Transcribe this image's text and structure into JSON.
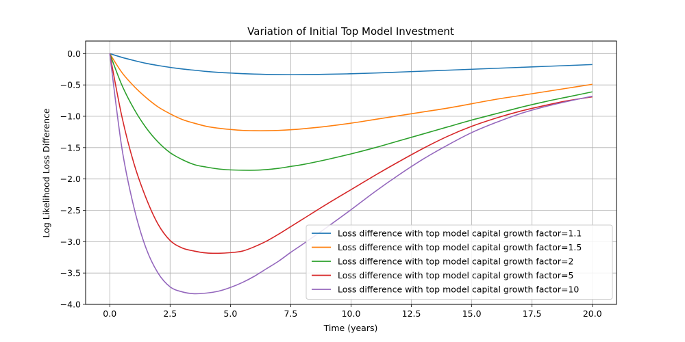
{
  "chart_data": {
    "type": "line",
    "title": "Variation of Initial Top Model Investment",
    "xlabel": "Time (years)",
    "ylabel": "Log Likelihood Loss Difference",
    "xlim": [
      -1.0,
      21.0
    ],
    "ylim": [
      -4.0,
      0.2
    ],
    "xticks": [
      0.0,
      2.5,
      5.0,
      7.5,
      10.0,
      12.5,
      15.0,
      17.5,
      20.0
    ],
    "xtick_labels": [
      "0.0",
      "2.5",
      "5.0",
      "7.5",
      "10.0",
      "12.5",
      "15.0",
      "17.5",
      "20.0"
    ],
    "yticks": [
      0.0,
      -0.5,
      -1.0,
      -1.5,
      -2.0,
      -2.5,
      -3.0,
      -3.5,
      -4.0
    ],
    "ytick_labels": [
      "0.0",
      "−0.5",
      "−1.0",
      "−1.5",
      "−2.0",
      "−2.5",
      "−3.0",
      "−3.5",
      "−4.0"
    ],
    "grid": true,
    "legend_position": "lower-right",
    "x": [
      0,
      0.5,
      1,
      1.5,
      2,
      2.5,
      3,
      3.5,
      4,
      4.5,
      5,
      5.5,
      6,
      6.5,
      7,
      7.5,
      8,
      9,
      10,
      11,
      12,
      13,
      14,
      15,
      16,
      17,
      18,
      19,
      20
    ],
    "series": [
      {
        "name": "Loss difference with top model capital growth factor=1.1",
        "color": "#1f77b4",
        "values": [
          0.0,
          -0.06,
          -0.11,
          -0.155,
          -0.19,
          -0.22,
          -0.245,
          -0.265,
          -0.285,
          -0.3,
          -0.31,
          -0.32,
          -0.327,
          -0.332,
          -0.335,
          -0.336,
          -0.335,
          -0.33,
          -0.322,
          -0.31,
          -0.295,
          -0.28,
          -0.265,
          -0.25,
          -0.235,
          -0.22,
          -0.205,
          -0.19,
          -0.175
        ]
      },
      {
        "name": "Loss difference with top model capital growth factor=1.5",
        "color": "#ff7f0e",
        "values": [
          0.0,
          -0.3,
          -0.52,
          -0.7,
          -0.85,
          -0.96,
          -1.05,
          -1.11,
          -1.16,
          -1.19,
          -1.21,
          -1.225,
          -1.23,
          -1.23,
          -1.225,
          -1.215,
          -1.2,
          -1.16,
          -1.11,
          -1.05,
          -0.99,
          -0.93,
          -0.87,
          -0.8,
          -0.73,
          -0.67,
          -0.61,
          -0.55,
          -0.49
        ]
      },
      {
        "name": "Loss difference with top model capital growth factor=2",
        "color": "#2ca02c",
        "values": [
          0.0,
          -0.5,
          -0.88,
          -1.18,
          -1.41,
          -1.58,
          -1.69,
          -1.77,
          -1.81,
          -1.84,
          -1.855,
          -1.86,
          -1.86,
          -1.85,
          -1.83,
          -1.8,
          -1.77,
          -1.69,
          -1.6,
          -1.5,
          -1.39,
          -1.28,
          -1.17,
          -1.06,
          -0.96,
          -0.86,
          -0.77,
          -0.69,
          -0.61
        ]
      },
      {
        "name": "Loss difference with top model capital growth factor=5",
        "color": "#d62728",
        "values": [
          0.0,
          -1.0,
          -1.75,
          -2.3,
          -2.72,
          -2.98,
          -3.1,
          -3.15,
          -3.18,
          -3.185,
          -3.175,
          -3.15,
          -3.08,
          -2.99,
          -2.88,
          -2.76,
          -2.64,
          -2.4,
          -2.17,
          -1.94,
          -1.72,
          -1.51,
          -1.32,
          -1.16,
          -1.03,
          -0.92,
          -0.83,
          -0.75,
          -0.69
        ]
      },
      {
        "name": "Loss difference with top model capital growth factor=10",
        "color": "#9467bd",
        "values": [
          0.0,
          -1.5,
          -2.45,
          -3.1,
          -3.5,
          -3.72,
          -3.8,
          -3.83,
          -3.82,
          -3.79,
          -3.73,
          -3.65,
          -3.55,
          -3.43,
          -3.31,
          -3.17,
          -3.04,
          -2.77,
          -2.49,
          -2.2,
          -1.93,
          -1.68,
          -1.46,
          -1.26,
          -1.1,
          -0.96,
          -0.85,
          -0.76,
          -0.68
        ]
      }
    ]
  }
}
